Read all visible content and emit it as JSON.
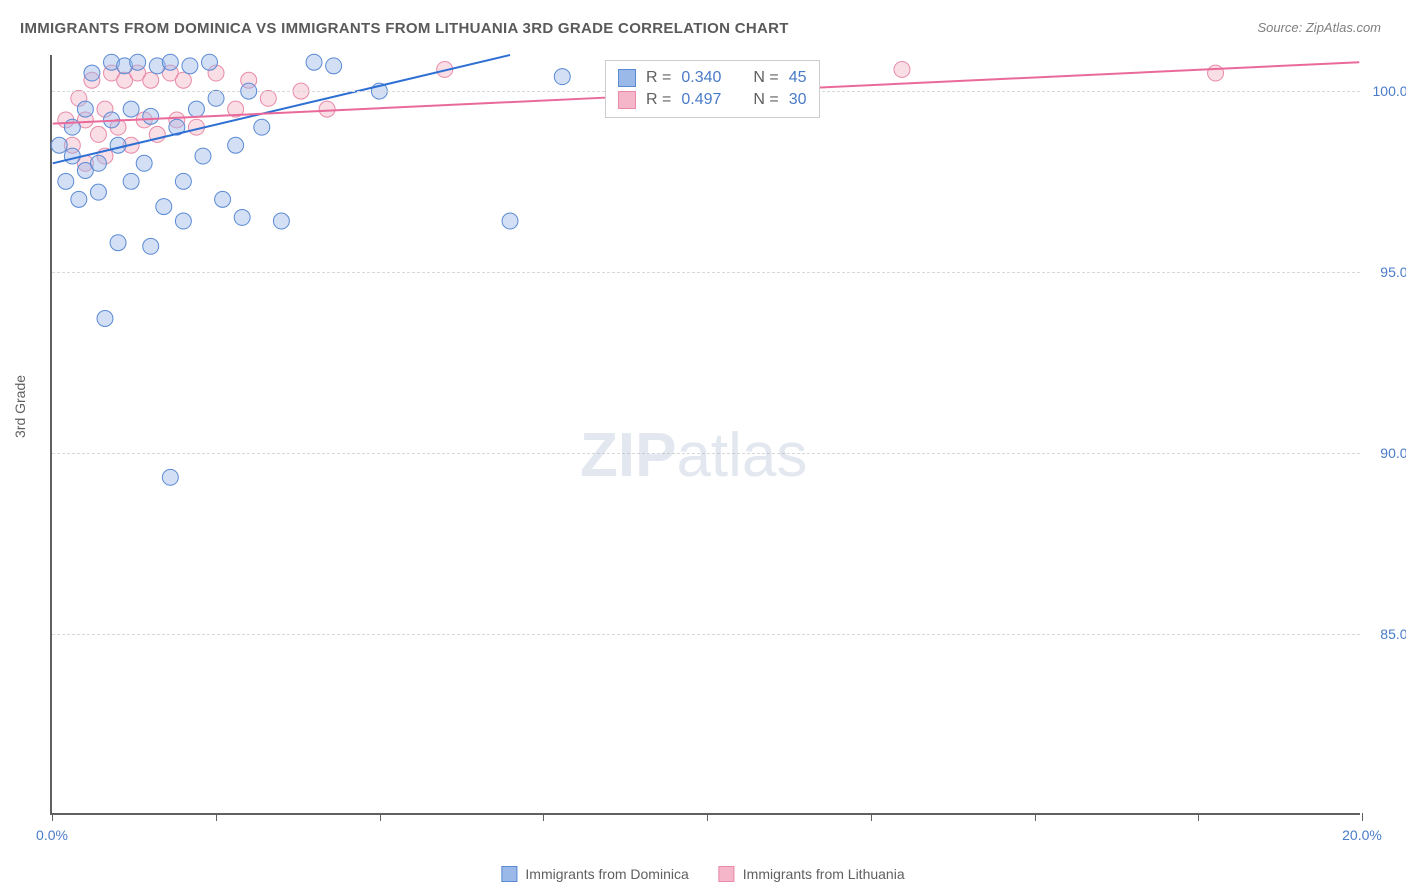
{
  "title": "IMMIGRANTS FROM DOMINICA VS IMMIGRANTS FROM LITHUANIA 3RD GRADE CORRELATION CHART",
  "source": "Source: ZipAtlas.com",
  "y_axis_label": "3rd Grade",
  "watermark_a": "ZIP",
  "watermark_b": "atlas",
  "chart": {
    "type": "scatter",
    "xlim": [
      0,
      20
    ],
    "ylim": [
      80,
      101
    ],
    "x_ticks": [
      0,
      2.5,
      5,
      7.5,
      10,
      12.5,
      15,
      17.5,
      20
    ],
    "x_tick_labels": {
      "0": "0.0%",
      "20": "20.0%"
    },
    "y_ticks": [
      85,
      90,
      95,
      100
    ],
    "y_tick_labels": {
      "85": "85.0%",
      "90": "90.0%",
      "95": "95.0%",
      "100": "100.0%"
    },
    "grid_color": "#d8d8d8",
    "axis_color": "#606060",
    "background": "#ffffff",
    "marker_radius": 8,
    "marker_opacity": 0.45,
    "line_width": 2,
    "series": [
      {
        "name": "Immigrants from Dominica",
        "color_fill": "#9bb9e8",
        "color_stroke": "#5a8ad4",
        "line_color": "#2e6fd4",
        "R": "0.340",
        "N": "45",
        "trend": {
          "x1": 0,
          "y1": 98.0,
          "x2": 7.0,
          "y2": 101.0
        },
        "points": [
          [
            0.1,
            98.5
          ],
          [
            0.2,
            97.5
          ],
          [
            0.3,
            99.0
          ],
          [
            0.3,
            98.2
          ],
          [
            0.4,
            97.0
          ],
          [
            0.5,
            99.5
          ],
          [
            0.5,
            97.8
          ],
          [
            0.6,
            100.5
          ],
          [
            0.7,
            98.0
          ],
          [
            0.7,
            97.2
          ],
          [
            0.8,
            93.7
          ],
          [
            0.9,
            100.8
          ],
          [
            0.9,
            99.2
          ],
          [
            1.0,
            98.5
          ],
          [
            1.0,
            95.8
          ],
          [
            1.1,
            100.7
          ],
          [
            1.2,
            99.5
          ],
          [
            1.2,
            97.5
          ],
          [
            1.3,
            100.8
          ],
          [
            1.4,
            98.0
          ],
          [
            1.5,
            99.3
          ],
          [
            1.5,
            95.7
          ],
          [
            1.6,
            100.7
          ],
          [
            1.7,
            96.8
          ],
          [
            1.8,
            100.8
          ],
          [
            1.8,
            89.3
          ],
          [
            1.9,
            99.0
          ],
          [
            2.0,
            97.5
          ],
          [
            2.0,
            96.4
          ],
          [
            2.1,
            100.7
          ],
          [
            2.2,
            99.5
          ],
          [
            2.3,
            98.2
          ],
          [
            2.4,
            100.8
          ],
          [
            2.5,
            99.8
          ],
          [
            2.6,
            97.0
          ],
          [
            2.8,
            98.5
          ],
          [
            2.9,
            96.5
          ],
          [
            3.0,
            100.0
          ],
          [
            3.2,
            99.0
          ],
          [
            3.5,
            96.4
          ],
          [
            4.0,
            100.8
          ],
          [
            4.3,
            100.7
          ],
          [
            5.0,
            100.0
          ],
          [
            7.0,
            96.4
          ],
          [
            7.8,
            100.4
          ]
        ]
      },
      {
        "name": "Immigrants from Lithuania",
        "color_fill": "#f4b6c8",
        "color_stroke": "#e88aa8",
        "line_color": "#e96a9a",
        "R": "0.497",
        "N": "30",
        "trend": {
          "x1": 0,
          "y1": 99.1,
          "x2": 20,
          "y2": 100.8
        },
        "points": [
          [
            0.2,
            99.2
          ],
          [
            0.3,
            98.5
          ],
          [
            0.4,
            99.8
          ],
          [
            0.5,
            98.0
          ],
          [
            0.5,
            99.2
          ],
          [
            0.6,
            100.3
          ],
          [
            0.7,
            98.8
          ],
          [
            0.8,
            99.5
          ],
          [
            0.8,
            98.2
          ],
          [
            0.9,
            100.5
          ],
          [
            1.0,
            99.0
          ],
          [
            1.1,
            100.3
          ],
          [
            1.2,
            98.5
          ],
          [
            1.3,
            100.5
          ],
          [
            1.4,
            99.2
          ],
          [
            1.5,
            100.3
          ],
          [
            1.6,
            98.8
          ],
          [
            1.8,
            100.5
          ],
          [
            1.9,
            99.2
          ],
          [
            2.0,
            100.3
          ],
          [
            2.2,
            99.0
          ],
          [
            2.5,
            100.5
          ],
          [
            2.8,
            99.5
          ],
          [
            3.0,
            100.3
          ],
          [
            3.3,
            99.8
          ],
          [
            3.8,
            100.0
          ],
          [
            4.2,
            99.5
          ],
          [
            6.0,
            100.6
          ],
          [
            13.0,
            100.6
          ],
          [
            17.8,
            100.5
          ]
        ]
      }
    ]
  },
  "legend": {
    "series1": "Immigrants from Dominica",
    "series2": "Immigrants from Lithuania"
  },
  "stats_labels": {
    "R": "R =",
    "N": "N ="
  }
}
